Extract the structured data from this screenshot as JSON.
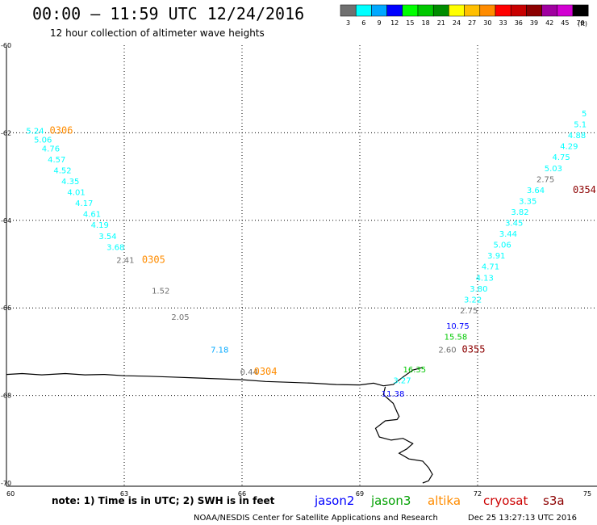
{
  "header": {
    "title": "00:00 – 11:59 UTC 12/24/2016",
    "subtitle": "12 hour collection of altimeter wave heights"
  },
  "color_scale": {
    "unit": "(ft)",
    "bins": [
      {
        "color": "#707070",
        "label": "3"
      },
      {
        "color": "#00ffff",
        "label": "6"
      },
      {
        "color": "#00a8ff",
        "label": "9"
      },
      {
        "color": "#0000ff",
        "label": "12"
      },
      {
        "color": "#00ff00",
        "label": "15"
      },
      {
        "color": "#00c800",
        "label": "18"
      },
      {
        "color": "#008c00",
        "label": "21"
      },
      {
        "color": "#ffff00",
        "label": "24"
      },
      {
        "color": "#ffbf00",
        "label": "27"
      },
      {
        "color": "#ff8c00",
        "label": "30"
      },
      {
        "color": "#ff0000",
        "label": "33"
      },
      {
        "color": "#c80000",
        "label": "36"
      },
      {
        "color": "#8c0000",
        "label": "39"
      },
      {
        "color": "#a000a0",
        "label": "42"
      },
      {
        "color": "#d200d2",
        "label": "45"
      },
      {
        "color": "#000000",
        "label": "70"
      }
    ]
  },
  "axes": {
    "lat_ticks": [
      {
        "label": "-60",
        "lat": -60
      },
      {
        "label": "-62",
        "lat": -62
      },
      {
        "label": "-64",
        "lat": -64
      },
      {
        "label": "-66",
        "lat": -66
      },
      {
        "label": "-68",
        "lat": -68
      },
      {
        "label": "-70",
        "lat": -70
      }
    ],
    "lon_ticks": [
      {
        "label": "60",
        "lon": 60
      },
      {
        "label": "63",
        "lon": 63
      },
      {
        "label": "66",
        "lon": 66
      },
      {
        "label": "69",
        "lon": 69
      },
      {
        "label": "72",
        "lon": 72
      },
      {
        "label": "75",
        "lon": 75
      }
    ]
  },
  "observations": [
    {
      "v": "5.24",
      "lon": 60.5,
      "lat": -61.95,
      "c": "#00ffff"
    },
    {
      "v": "5.06",
      "lon": 60.7,
      "lat": -62.15,
      "c": "#00ffff"
    },
    {
      "v": "4.76",
      "lon": 60.9,
      "lat": -62.35,
      "c": "#00ffff"
    },
    {
      "v": "4.57",
      "lon": 61.05,
      "lat": -62.6,
      "c": "#00ffff"
    },
    {
      "v": "4.52",
      "lon": 61.2,
      "lat": -62.85,
      "c": "#00ffff"
    },
    {
      "v": "4.35",
      "lon": 61.4,
      "lat": -63.1,
      "c": "#00ffff"
    },
    {
      "v": "4.01",
      "lon": 61.55,
      "lat": -63.35,
      "c": "#00ffff"
    },
    {
      "v": "4.17",
      "lon": 61.75,
      "lat": -63.6,
      "c": "#00ffff"
    },
    {
      "v": "4.61",
      "lon": 61.95,
      "lat": -63.85,
      "c": "#00ffff"
    },
    {
      "v": "4.19",
      "lon": 62.15,
      "lat": -64.1,
      "c": "#00ffff"
    },
    {
      "v": "3.54",
      "lon": 62.35,
      "lat": -64.35,
      "c": "#00ffff"
    },
    {
      "v": "3.68",
      "lon": 62.55,
      "lat": -64.6,
      "c": "#00ffff"
    },
    {
      "v": "2.41",
      "lon": 62.8,
      "lat": -64.9,
      "c": "#707070"
    },
    {
      "v": "1.52",
      "lon": 63.7,
      "lat": -65.6,
      "c": "#707070"
    },
    {
      "v": "2.05",
      "lon": 64.2,
      "lat": -66.2,
      "c": "#707070"
    },
    {
      "v": "7.18",
      "lon": 65.2,
      "lat": -66.95,
      "c": "#00a8ff"
    },
    {
      "v": "0.44",
      "lon": 65.95,
      "lat": -67.45,
      "c": "#707070"
    },
    {
      "v": "11.38",
      "lon": 69.55,
      "lat": -67.95,
      "c": "#0000ff"
    },
    {
      "v": "3.27",
      "lon": 69.85,
      "lat": -67.65,
      "c": "#00ffff"
    },
    {
      "v": "16.35",
      "lon": 70.1,
      "lat": -67.4,
      "c": "#00c800"
    },
    {
      "v": "2.60",
      "lon": 71.0,
      "lat": -66.95,
      "c": "#707070"
    },
    {
      "v": "15.58",
      "lon": 71.15,
      "lat": -66.65,
      "c": "#00c800"
    },
    {
      "v": "10.75",
      "lon": 71.2,
      "lat": -66.4,
      "c": "#0000ff"
    },
    {
      "v": "2.75",
      "lon": 71.55,
      "lat": -66.05,
      "c": "#707070"
    },
    {
      "v": "3.22",
      "lon": 71.65,
      "lat": -65.8,
      "c": "#00ffff"
    },
    {
      "v": "3.80",
      "lon": 71.8,
      "lat": -65.55,
      "c": "#00ffff"
    },
    {
      "v": "4.13",
      "lon": 71.95,
      "lat": -65.3,
      "c": "#00ffff"
    },
    {
      "v": "4.71",
      "lon": 72.1,
      "lat": -65.05,
      "c": "#00ffff"
    },
    {
      "v": "3.91",
      "lon": 72.25,
      "lat": -64.8,
      "c": "#00ffff"
    },
    {
      "v": "5.06",
      "lon": 72.4,
      "lat": -64.55,
      "c": "#00ffff"
    },
    {
      "v": "3.44",
      "lon": 72.55,
      "lat": -64.3,
      "c": "#00ffff"
    },
    {
      "v": "3.45",
      "lon": 72.7,
      "lat": -64.05,
      "c": "#00ffff"
    },
    {
      "v": "3.82",
      "lon": 72.85,
      "lat": -63.8,
      "c": "#00ffff"
    },
    {
      "v": "3.35",
      "lon": 73.05,
      "lat": -63.55,
      "c": "#00ffff"
    },
    {
      "v": "3.64",
      "lon": 73.25,
      "lat": -63.3,
      "c": "#00ffff"
    },
    {
      "v": "2.75",
      "lon": 73.5,
      "lat": -63.05,
      "c": "#707070"
    },
    {
      "v": "5.03",
      "lon": 73.7,
      "lat": -62.8,
      "c": "#00ffff"
    },
    {
      "v": "4.75",
      "lon": 73.9,
      "lat": -62.55,
      "c": "#00ffff"
    },
    {
      "v": "4.29",
      "lon": 74.1,
      "lat": -62.3,
      "c": "#00ffff"
    },
    {
      "v": "4.88",
      "lon": 74.3,
      "lat": -62.05,
      "c": "#00ffff"
    },
    {
      "v": "5.1",
      "lon": 74.45,
      "lat": -61.8,
      "c": "#00ffff"
    },
    {
      "v": "5",
      "lon": 74.65,
      "lat": -61.55,
      "c": "#00ffff"
    }
  ],
  "tracks": [
    {
      "label": "0306",
      "lon": 61.1,
      "lat": -61.95,
      "c": "#ff8c00"
    },
    {
      "label": "0305",
      "lon": 63.45,
      "lat": -64.9,
      "c": "#ff8c00"
    },
    {
      "label": "0304",
      "lon": 66.3,
      "lat": -67.45,
      "c": "#ff8c00"
    },
    {
      "label": "0355",
      "lon": 71.6,
      "lat": -66.95,
      "c": "#8c0000"
    },
    {
      "label": "0354",
      "lon": 74.6,
      "lat": -63.3,
      "c": "#8c0000"
    }
  ],
  "coastline_lonlat": [
    [
      60.0,
      -67.52
    ],
    [
      60.4,
      -67.5
    ],
    [
      60.9,
      -67.53
    ],
    [
      61.5,
      -67.5
    ],
    [
      62.0,
      -67.53
    ],
    [
      62.5,
      -67.52
    ],
    [
      63.0,
      -67.55
    ],
    [
      63.6,
      -67.56
    ],
    [
      64.2,
      -67.58
    ],
    [
      64.8,
      -67.6
    ],
    [
      65.4,
      -67.62
    ],
    [
      66.0,
      -67.64
    ],
    [
      66.6,
      -67.68
    ],
    [
      67.2,
      -67.7
    ],
    [
      67.8,
      -67.72
    ],
    [
      68.4,
      -67.75
    ],
    [
      69.0,
      -67.76
    ],
    [
      69.35,
      -67.72
    ],
    [
      69.6,
      -67.78
    ],
    [
      69.85,
      -67.75
    ],
    [
      70.1,
      -67.58
    ],
    [
      70.35,
      -67.42
    ],
    [
      70.6,
      -67.36
    ]
  ],
  "inland_lonlat": [
    [
      69.65,
      -67.8
    ],
    [
      69.6,
      -67.98
    ],
    [
      69.85,
      -68.18
    ],
    [
      69.95,
      -68.38
    ],
    [
      70.0,
      -68.48
    ],
    [
      69.95,
      -68.55
    ],
    [
      69.65,
      -68.58
    ],
    [
      69.4,
      -68.75
    ],
    [
      69.5,
      -68.95
    ],
    [
      69.8,
      -69.02
    ],
    [
      70.1,
      -68.98
    ],
    [
      70.35,
      -69.1
    ],
    [
      70.2,
      -69.22
    ],
    [
      70.0,
      -69.32
    ],
    [
      70.25,
      -69.45
    ],
    [
      70.6,
      -69.5
    ],
    [
      70.75,
      -69.65
    ],
    [
      70.85,
      -69.8
    ],
    [
      70.75,
      -69.95
    ],
    [
      70.6,
      -70.0
    ]
  ],
  "legend": {
    "note": "note: 1) Time is in UTC; 2) SWH is in feet",
    "satellites": [
      {
        "name": "jason2",
        "color": "#0000ff"
      },
      {
        "name": "jason3",
        "color": "#00a000"
      },
      {
        "name": "altika",
        "color": "#ff8c00"
      },
      {
        "name": "cryosat",
        "color": "#cc0000"
      },
      {
        "name": "s3a",
        "color": "#8c0000"
      }
    ],
    "credit": "NOAA/NESDIS Center for Satellite Applications and Research",
    "timestamp": "Dec 25 13:27:13 UTC 2016"
  }
}
